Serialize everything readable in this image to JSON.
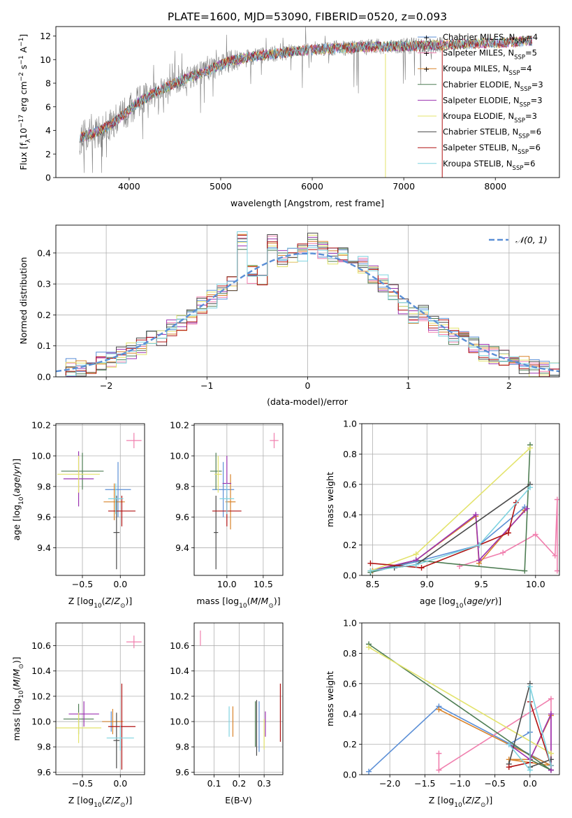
{
  "figure": {
    "title": "PLATE=1600, MJD=53090, FIBERID=0520, z=0.093",
    "series_styles": [
      {
        "color": "#5b8fd6"
      },
      {
        "color": "#f07fae"
      },
      {
        "color": "#d9832a"
      },
      {
        "color": "#4e7d53"
      },
      {
        "color": "#9b32b0"
      },
      {
        "color": "#e3e36b"
      },
      {
        "color": "#4b4b4b"
      },
      {
        "color": "#b01212"
      },
      {
        "color": "#7fd3e0"
      }
    ],
    "data_color": "#808080",
    "normal_color": "#5b8fd6"
  },
  "chart_data": [
    {
      "id": "spectrum",
      "type": "line",
      "title": "PLATE=1600, MJD=53090, FIBERID=0520, z=0.093",
      "xlabel": "wavelength [Angstrom, rest frame]",
      "ylabel": "Flux [f_λ10^-17 erg cm^-2 s^-1 A^-1]",
      "xlim": [
        3200,
        8700
      ],
      "ylim": [
        0,
        12.8
      ],
      "xticks": [
        4000,
        5000,
        6000,
        7000,
        8000
      ],
      "yticks": [
        0,
        2,
        4,
        6,
        8,
        10,
        12
      ],
      "grid": false,
      "legend_position": "top-right",
      "series": [
        {
          "name": "Chabrier MILES, N_SSP=4",
          "label_main": "Chabrier MILES, N",
          "label_sub": "SSP",
          "label_end": "=4"
        },
        {
          "name": "Salpeter MILES, N_SSP=5",
          "label_main": "Salpeter MILES, N",
          "label_sub": "SSP",
          "label_end": "=5"
        },
        {
          "name": "Kroupa MILES, N_SSP=4",
          "label_main": "Kroupa MILES, N",
          "label_sub": "SSP",
          "label_end": "=4"
        },
        {
          "name": "Chabrier ELODIE, N_SSP=3",
          "label_main": "Chabrier ELODIE, N",
          "label_sub": "SSP",
          "label_end": "=3"
        },
        {
          "name": "Salpeter ELODIE, N_SSP=3",
          "label_main": "Salpeter ELODIE, N",
          "label_sub": "SSP",
          "label_end": "=3"
        },
        {
          "name": "Kroupa ELODIE, N_SSP=3",
          "label_main": "Kroupa ELODIE, N",
          "label_sub": "SSP",
          "label_end": "=3"
        },
        {
          "name": "Chabrier STELIB, N_SSP=6",
          "label_main": "Chabrier STELIB, N",
          "label_sub": "SSP",
          "label_end": "=6"
        },
        {
          "name": "Salpeter STELIB, N_SSP=6",
          "label_main": "Salpeter STELIB, N",
          "label_sub": "SSP",
          "label_end": "=6"
        },
        {
          "name": "Kroupa STELIB, N_SSP=6",
          "label_main": "Kroupa STELIB, N",
          "label_sub": "SSP",
          "label_end": "=6"
        }
      ],
      "model_continuum": {
        "x": [
          3460,
          3600,
          3800,
          3950,
          4100,
          4300,
          4500,
          4700,
          4900,
          5100,
          5300,
          5500,
          5800,
          6100,
          6400,
          6700,
          7000,
          7300,
          7600,
          8000,
          8400
        ],
        "y": [
          3.4,
          3.7,
          4.5,
          5.4,
          6.4,
          7.3,
          8.0,
          8.6,
          9.2,
          9.9,
          10.2,
          10.4,
          10.7,
          10.9,
          11.0,
          11.1,
          11.15,
          11.2,
          11.3,
          11.4,
          11.6
        ]
      }
    },
    {
      "id": "residuals",
      "type": "bar",
      "xlabel": "(data-model)/error",
      "ylabel": "Normed distribution",
      "xlim": [
        -2.5,
        2.5
      ],
      "ylim": [
        0,
        0.49
      ],
      "xticks": [
        -2,
        -1,
        0,
        1,
        2
      ],
      "yticks": [
        0.0,
        0.1,
        0.2,
        0.3,
        0.4
      ],
      "grid": true,
      "legend_position": "top-right",
      "legend": "𝒩(0, 1)",
      "bin_edges": [
        -2.5,
        -2.4,
        -2.3,
        -2.2,
        -2.1,
        -2.0,
        -1.9,
        -1.8,
        -1.7,
        -1.6,
        -1.5,
        -1.4,
        -1.3,
        -1.2,
        -1.1,
        -1.0,
        -0.9,
        -0.8,
        -0.7,
        -0.6,
        -0.5,
        -0.4,
        -0.3,
        -0.2,
        -0.1,
        0.0,
        0.1,
        0.2,
        0.3,
        0.4,
        0.5,
        0.6,
        0.7,
        0.8,
        0.9,
        1.0,
        1.1,
        1.2,
        1.3,
        1.4,
        1.5,
        1.6,
        1.7,
        1.8,
        1.9,
        2.0,
        2.1,
        2.2,
        2.3,
        2.4,
        2.5
      ],
      "histogram_reference": [
        0.02,
        0.03,
        0.03,
        0.04,
        0.05,
        0.06,
        0.07,
        0.08,
        0.1,
        0.12,
        0.13,
        0.16,
        0.17,
        0.2,
        0.23,
        0.25,
        0.28,
        0.3,
        0.44,
        0.33,
        0.3,
        0.43,
        0.38,
        0.39,
        0.4,
        0.44,
        0.41,
        0.39,
        0.4,
        0.37,
        0.36,
        0.33,
        0.3,
        0.27,
        0.23,
        0.2,
        0.21,
        0.17,
        0.16,
        0.13,
        0.12,
        0.1,
        0.08,
        0.07,
        0.06,
        0.05,
        0.04,
        0.03,
        0.03,
        0.02
      ],
      "normal_curve": {
        "mean": 0,
        "sigma": 1
      }
    },
    {
      "id": "z-vs-age",
      "type": "scatter",
      "xlabel": "Z [log10(Z/Z⊙)]",
      "ylabel": "age [log10(age/yr)]",
      "xlim": [
        -0.85,
        0.32
      ],
      "ylim": [
        9.22,
        10.21
      ],
      "xticks": [
        -0.5,
        0.0
      ],
      "yticks": [
        9.4,
        9.6,
        9.8,
        10.0,
        10.2
      ],
      "grid": true,
      "points": [
        {
          "x": -0.03,
          "y": 9.78,
          "xerr": 0.17,
          "yerr": 0.18
        },
        {
          "x": 0.18,
          "y": 10.1,
          "xerr": 0.1,
          "yerr": 0.05
        },
        {
          "x": -0.08,
          "y": 9.7,
          "xerr": 0.14,
          "yerr": 0.12
        },
        {
          "x": -0.5,
          "y": 9.9,
          "xerr": 0.28,
          "yerr": 0.12
        },
        {
          "x": -0.55,
          "y": 9.85,
          "xerr": 0.2,
          "yerr": 0.18
        },
        {
          "x": -0.55,
          "y": 9.88,
          "xerr": 0.28,
          "yerr": 0.12
        },
        {
          "x": -0.05,
          "y": 9.5,
          "xerr": 0.04,
          "yerr": 0.24
        },
        {
          "x": 0.02,
          "y": 9.64,
          "xerr": 0.18,
          "yerr": 0.1
        },
        {
          "x": -0.06,
          "y": 9.72,
          "xerr": 0.1,
          "yerr": 0.1
        }
      ]
    },
    {
      "id": "mass-vs-age",
      "type": "scatter",
      "xlabel": "mass [log10(M/M⊙)]",
      "ylabel": "",
      "xlim": [
        9.55,
        10.77
      ],
      "ylim": [
        9.22,
        10.21
      ],
      "xticks": [
        10.0,
        10.5
      ],
      "yticks": [
        9.4,
        9.6,
        9.8,
        10.0,
        10.2
      ],
      "grid": true,
      "points": [
        {
          "x": 9.95,
          "y": 9.78,
          "xerr": 0.15,
          "yerr": 0.18
        },
        {
          "x": 10.65,
          "y": 10.1,
          "xerr": 0.06,
          "yerr": 0.05
        },
        {
          "x": 10.05,
          "y": 9.7,
          "xerr": 0.07,
          "yerr": 0.18
        },
        {
          "x": 9.85,
          "y": 9.9,
          "xerr": 0.08,
          "yerr": 0.12
        },
        {
          "x": 10.0,
          "y": 9.82,
          "xerr": 0.06,
          "yerr": 0.18
        },
        {
          "x": 9.88,
          "y": 9.88,
          "xerr": 0.05,
          "yerr": 0.12
        },
        {
          "x": 9.85,
          "y": 9.5,
          "xerr": 0.03,
          "yerr": 0.24
        },
        {
          "x": 10.0,
          "y": 9.64,
          "xerr": 0.2,
          "yerr": 0.1
        },
        {
          "x": 10.0,
          "y": 9.72,
          "xerr": 0.1,
          "yerr": 0.1
        }
      ]
    },
    {
      "id": "age-weight",
      "type": "line",
      "xlabel": "age [log10(age/yr)]",
      "ylabel": "mass weight",
      "xlim": [
        8.4,
        10.22
      ],
      "ylim": [
        0,
        1
      ],
      "xticks": [
        8.5,
        9.0,
        9.5,
        10.0
      ],
      "yticks": [
        0.0,
        0.2,
        0.4,
        0.6,
        0.8,
        1.0
      ],
      "grid": true,
      "series": [
        {
          "x": [
            8.48,
            8.9,
            9.48,
            9.9
          ],
          "y": [
            0.02,
            0.09,
            0.2,
            0.45
          ]
        },
        {
          "x": [
            9.3,
            9.7,
            10.0,
            10.18,
            10.2,
            10.2
          ],
          "y": [
            0.06,
            0.15,
            0.27,
            0.13,
            0.5,
            0.03
          ]
        },
        {
          "x": [
            8.5,
            8.9,
            9.45,
            9.48,
            9.9
          ],
          "y": [
            0.03,
            0.1,
            0.39,
            0.08,
            0.43
          ]
        },
        {
          "x": [
            8.48,
            8.9,
            9.9,
            9.95
          ],
          "y": [
            0.02,
            0.1,
            0.03,
            0.86
          ]
        },
        {
          "x": [
            8.48,
            8.9,
            9.45,
            9.48,
            9.92
          ],
          "y": [
            0.03,
            0.1,
            0.4,
            0.1,
            0.44
          ]
        },
        {
          "x": [
            8.48,
            8.9,
            9.95
          ],
          "y": [
            0.03,
            0.14,
            0.84
          ]
        },
        {
          "x": [
            8.7,
            8.9,
            9.95
          ],
          "y": [
            0.05,
            0.07,
            0.6
          ]
        },
        {
          "x": [
            8.48,
            8.95,
            9.48,
            9.75,
            9.82
          ],
          "y": [
            0.08,
            0.05,
            0.2,
            0.28,
            0.48
          ]
        },
        {
          "x": [
            8.48,
            8.9,
            9.48,
            9.95
          ],
          "y": [
            0.03,
            0.07,
            0.2,
            0.58
          ]
        }
      ]
    },
    {
      "id": "z-vs-mass",
      "type": "scatter",
      "xlabel": "Z [log10(Z/Z⊙)]",
      "ylabel": "mass [log10(M/M⊙)]",
      "xlim": [
        -0.85,
        0.32
      ],
      "ylim": [
        9.58,
        10.78
      ],
      "xticks": [
        -0.5,
        0.0
      ],
      "yticks": [
        9.6,
        9.8,
        10.0,
        10.2,
        10.4,
        10.6
      ],
      "grid": true,
      "points": [
        {
          "x": -0.12,
          "y": 10.0,
          "xerr": 0.12,
          "yerr": 0.08
        },
        {
          "x": 0.18,
          "y": 10.63,
          "xerr": 0.1,
          "yerr": 0.05
        },
        {
          "x": -0.1,
          "y": 10.0,
          "xerr": 0.14,
          "yerr": 0.1
        },
        {
          "x": -0.55,
          "y": 10.02,
          "xerr": 0.2,
          "yerr": 0.12
        },
        {
          "x": -0.48,
          "y": 10.06,
          "xerr": 0.2,
          "yerr": 0.1
        },
        {
          "x": -0.55,
          "y": 9.95,
          "xerr": 0.3,
          "yerr": 0.12
        },
        {
          "x": -0.05,
          "y": 9.85,
          "xerr": 0.04,
          "yerr": 0.22
        },
        {
          "x": 0.02,
          "y": 9.96,
          "xerr": 0.18,
          "yerr": 0.34
        },
        {
          "x": 0.0,
          "y": 9.87,
          "xerr": 0.18,
          "yerr": 0.1
        }
      ]
    },
    {
      "id": "ebv-vs-mass",
      "type": "scatter",
      "xlabel": "E(B-V)",
      "ylabel": "",
      "xlim": [
        0.02,
        0.375
      ],
      "ylim": [
        9.58,
        10.78
      ],
      "xticks": [
        0.1,
        0.2,
        0.3
      ],
      "yticks": [
        9.6,
        9.8,
        10.0,
        10.2,
        10.4,
        10.6
      ],
      "grid": true,
      "points": [
        {
          "x": 0.28,
          "y": 9.96,
          "xerr": 0.0,
          "yerr": 0.2
        },
        {
          "x": 0.045,
          "y": 10.66,
          "xerr": 0.0,
          "yerr": 0.06
        },
        {
          "x": 0.175,
          "y": 10.0,
          "xerr": 0.0,
          "yerr": 0.12
        },
        {
          "x": 0.265,
          "y": 9.98,
          "xerr": 0.0,
          "yerr": 0.18
        },
        {
          "x": 0.305,
          "y": 9.98,
          "xerr": 0.0,
          "yerr": 0.1
        },
        {
          "x": 0.3,
          "y": 9.9,
          "xerr": 0.0,
          "yerr": 0.12
        },
        {
          "x": 0.27,
          "y": 9.95,
          "xerr": 0.0,
          "yerr": 0.22
        },
        {
          "x": 0.365,
          "y": 10.07,
          "xerr": 0.0,
          "yerr": 0.23
        },
        {
          "x": 0.16,
          "y": 10.0,
          "xerr": 0.0,
          "yerr": 0.12
        }
      ]
    },
    {
      "id": "z-weight",
      "type": "line",
      "xlabel": "Z [log10(Z/Z⊙)]",
      "ylabel": "mass weight",
      "xlim": [
        -2.4,
        0.42
      ],
      "ylim": [
        0,
        1
      ],
      "xticks": [
        -2.0,
        -1.5,
        -1.0,
        -0.5,
        0.0
      ],
      "yticks": [
        0.0,
        0.2,
        0.4,
        0.6,
        0.8,
        1.0
      ],
      "grid": true,
      "series": [
        {
          "x": [
            -2.3,
            -1.3,
            0.3,
            -0.3,
            0.0
          ],
          "y": [
            0.02,
            0.45,
            0.06,
            0.2,
            0.28
          ]
        },
        {
          "x": [
            -1.3,
            -1.3,
            0.3,
            0.3
          ],
          "y": [
            0.14,
            0.03,
            0.5,
            0.03
          ]
        },
        {
          "x": [
            -1.3,
            0.3,
            -0.3,
            0.0,
            0.3
          ],
          "y": [
            0.43,
            0.06,
            0.1,
            0.1,
            0.39
          ]
        },
        {
          "x": [
            -2.3,
            0.3,
            0.0
          ],
          "y": [
            0.86,
            0.03,
            0.1
          ]
        },
        {
          "x": [
            -0.3,
            0.0,
            0.3,
            0.3
          ],
          "y": [
            0.2,
            0.1,
            0.4,
            0.03
          ]
        },
        {
          "x": [
            -2.3,
            0.3
          ],
          "y": [
            0.84,
            0.14
          ]
        },
        {
          "x": [
            -0.3,
            0.0,
            0.0,
            0.3
          ],
          "y": [
            0.07,
            0.6,
            0.05,
            0.1
          ]
        },
        {
          "x": [
            -0.3,
            0.0,
            0.0,
            0.3
          ],
          "y": [
            0.05,
            0.08,
            0.48,
            0.06
          ]
        },
        {
          "x": [
            -0.3,
            0.0,
            0.0,
            0.3
          ],
          "y": [
            0.2,
            0.03,
            0.58,
            0.06
          ]
        }
      ]
    }
  ]
}
